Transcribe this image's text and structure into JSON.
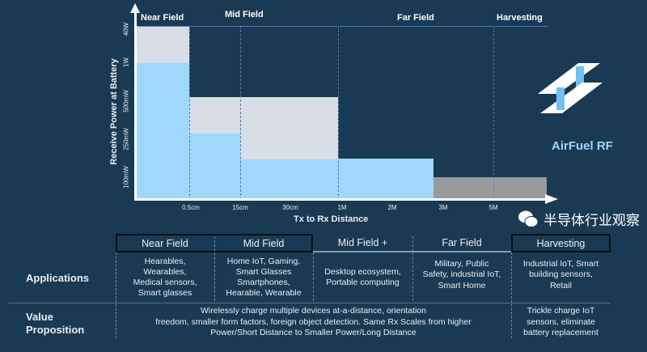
{
  "chart_data": {
    "type": "step-area",
    "ylabel": "Receive Power at Battery",
    "xlabel": "Tx to Rx Distance",
    "y_ticks": [
      "100mW",
      "250mW",
      "500mW",
      "1W",
      "40W"
    ],
    "x_ticks": [
      "0.5cm",
      "15cm",
      "30cm",
      "1M",
      "2M",
      "3M",
      "5M"
    ],
    "zones": [
      "Near Field",
      "Mid Field",
      "Far Field",
      "Harvesting"
    ],
    "segments": [
      {
        "from": "0",
        "to": "0.5cm",
        "max": "40W",
        "typical": "1W"
      },
      {
        "from": "0.5cm",
        "to": "15cm",
        "max": "500mW",
        "typical": "250mW"
      },
      {
        "from": "15cm",
        "to": "1M",
        "max": "500mW",
        "typical": "~150mW"
      },
      {
        "from": "1M",
        "to": "~2.8M",
        "max": "~150mW",
        "typical": "~150mW"
      },
      {
        "from": "~2.8M",
        "to": ">5M",
        "max": "100mW",
        "typical": "harvesting"
      }
    ],
    "colors": {
      "max": "#d9dde5",
      "typical": "#9fd8fb",
      "harvesting": "#9a9a9c"
    }
  },
  "logo": {
    "text": "AirFuel RF"
  },
  "table": {
    "headers": [
      "Near Field",
      "Mid Field",
      "Mid Field +",
      "Far Field",
      "Harvesting"
    ],
    "applications_label": "Applications",
    "applications": [
      "Hearables,\nWearables,\nMedical sensors,\nSmart glasses",
      "Home IoT, Gaming,\nSmart Glasses\nSmartphones,\nHearable, Wearable",
      "Desktop ecosystem,\nPortable computing",
      "Military, Public\nSafety, industrial IoT,\nSmart Home",
      "Industrial IoT, Smart\nbuilding sensors,\nRetail"
    ],
    "value_label": "Value\nProposition",
    "value_main": "Wirelessly charge multiple devices at-a-distance, orientation\nfreedom, smaller form factors, foreign object detection. Same Rx Scales from higher\nPower/Short Distance to Smaller Power/Long Distance",
    "value_harvest": "Trickle charge IoT\nsensors, eliminate\nbattery replacement"
  },
  "watermark": {
    "text": "半导体行业观察"
  }
}
